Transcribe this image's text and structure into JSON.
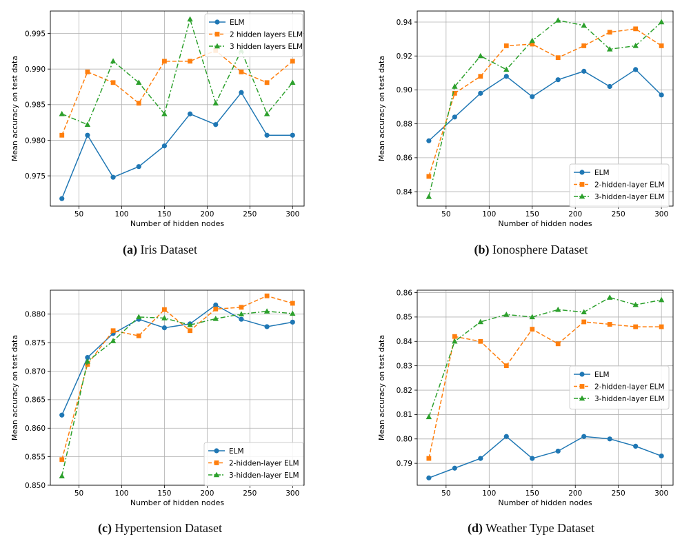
{
  "colors": {
    "elm": "#1f77b4",
    "two": "#ff7f0e",
    "three": "#2ca02c"
  },
  "chart_data": [
    {
      "type": "line",
      "caption_letter": "(a)",
      "caption_text": " Iris Dataset",
      "xlabel": "Number of hidden nodes",
      "ylabel": "Mean accuracy on test data",
      "x": [
        30,
        60,
        90,
        120,
        150,
        180,
        210,
        240,
        270,
        300
      ],
      "xlim": [
        16.5,
        313.5
      ],
      "ylim": [
        0.97075,
        0.99815
      ],
      "xticks": [
        50,
        100,
        150,
        200,
        250,
        300
      ],
      "yticks": [
        0.975,
        0.98,
        0.985,
        0.99,
        0.995
      ],
      "ytick_labels": [
        "0.975",
        "0.980",
        "0.985",
        "0.990",
        "0.995"
      ],
      "xtick_labels": [
        "50",
        "100",
        "150",
        "200",
        "250",
        "300"
      ],
      "legend_position": "upper-right",
      "series": [
        {
          "name": "ELM",
          "style": "solid",
          "marker": "circle",
          "values": [
            0.9718,
            0.9807,
            0.9748,
            0.9763,
            0.9792,
            0.9837,
            0.9822,
            0.9867,
            0.9807,
            0.9807
          ]
        },
        {
          "name": "2 hidden layers ELM",
          "style": "dashed",
          "marker": "square",
          "values": [
            0.9807,
            0.9896,
            0.9881,
            0.9852,
            0.9911,
            0.9911,
            0.9926,
            0.9896,
            0.9881,
            0.9911
          ]
        },
        {
          "name": "3 hidden layers ELM",
          "style": "dashdot",
          "marker": "triangle",
          "values": [
            0.9837,
            0.9822,
            0.9911,
            0.9881,
            0.9837,
            0.997,
            0.9852,
            0.9926,
            0.9837,
            0.9881
          ]
        }
      ]
    },
    {
      "type": "line",
      "caption_letter": "(b)",
      "caption_text": " Ionosphere Dataset",
      "xlabel": "Number of hidden nodes",
      "ylabel": "Mean accuracy on test data",
      "x": [
        30,
        60,
        90,
        120,
        150,
        180,
        210,
        240,
        270,
        300
      ],
      "xlim": [
        16.5,
        313.5
      ],
      "ylim": [
        0.8315,
        0.9465
      ],
      "xticks": [
        50,
        100,
        150,
        200,
        250,
        300
      ],
      "yticks": [
        0.84,
        0.86,
        0.88,
        0.9,
        0.92,
        0.94
      ],
      "ytick_labels": [
        "0.84",
        "0.86",
        "0.88",
        "0.90",
        "0.92",
        "0.94"
      ],
      "xtick_labels": [
        "50",
        "100",
        "150",
        "200",
        "250",
        "300"
      ],
      "legend_position": "lower-right",
      "series": [
        {
          "name": "ELM",
          "style": "solid",
          "marker": "circle",
          "values": [
            0.87,
            0.884,
            0.898,
            0.908,
            0.896,
            0.906,
            0.911,
            0.902,
            0.912,
            0.897
          ]
        },
        {
          "name": "2-hidden-layer ELM",
          "style": "dashed",
          "marker": "square",
          "values": [
            0.849,
            0.898,
            0.908,
            0.926,
            0.927,
            0.919,
            0.926,
            0.934,
            0.936,
            0.926
          ]
        },
        {
          "name": "3-hidden-layer ELM",
          "style": "dashdot",
          "marker": "triangle",
          "values": [
            0.837,
            0.902,
            0.92,
            0.912,
            0.929,
            0.941,
            0.938,
            0.924,
            0.926,
            0.94
          ]
        }
      ]
    },
    {
      "type": "line",
      "caption_letter": "(c)",
      "caption_text": " Hypertension Dataset",
      "xlabel": "Number of hidden nodes",
      "ylabel": "Mean accuracy on test data",
      "x": [
        30,
        60,
        90,
        120,
        150,
        180,
        210,
        240,
        270,
        300
      ],
      "xlim": [
        16.5,
        313.5
      ],
      "ylim": [
        0.85,
        0.8842
      ],
      "xticks": [
        50,
        100,
        150,
        200,
        250,
        300
      ],
      "yticks": [
        0.85,
        0.855,
        0.86,
        0.865,
        0.87,
        0.875,
        0.88
      ],
      "ytick_labels": [
        "0.850",
        "0.855",
        "0.860",
        "0.865",
        "0.870",
        "0.875",
        "0.880"
      ],
      "xtick_labels": [
        "50",
        "100",
        "150",
        "200",
        "250",
        "300"
      ],
      "legend_position": "lower-right",
      "series": [
        {
          "name": "ELM",
          "style": "solid",
          "marker": "circle",
          "values": [
            0.8623,
            0.8724,
            0.8766,
            0.8791,
            0.8776,
            0.8783,
            0.8816,
            0.8791,
            0.8778,
            0.8786
          ]
        },
        {
          "name": "2-hidden-layer ELM",
          "style": "dashed",
          "marker": "square",
          "values": [
            0.8545,
            0.8712,
            0.8771,
            0.8762,
            0.8808,
            0.8771,
            0.8809,
            0.8812,
            0.8832,
            0.8819
          ]
        },
        {
          "name": "3-hidden-layer ELM",
          "style": "dashdot",
          "marker": "triangle",
          "values": [
            0.8516,
            0.8717,
            0.8753,
            0.8795,
            0.8793,
            0.8781,
            0.8792,
            0.88,
            0.8805,
            0.8801
          ]
        }
      ]
    },
    {
      "type": "line",
      "caption_letter": "(d)",
      "caption_text": " Weather Type Dataset",
      "xlabel": "Number of hidden nodes",
      "ylabel": "Mean accuracy on test data",
      "x": [
        30,
        60,
        90,
        120,
        150,
        180,
        210,
        240,
        270,
        300
      ],
      "xlim": [
        16.5,
        313.5
      ],
      "ylim": [
        0.781,
        0.861
      ],
      "xticks": [
        50,
        100,
        150,
        200,
        250,
        300
      ],
      "yticks": [
        0.79,
        0.8,
        0.81,
        0.82,
        0.83,
        0.84,
        0.85,
        0.86
      ],
      "ytick_labels": [
        "0.79",
        "0.80",
        "0.81",
        "0.82",
        "0.83",
        "0.84",
        "0.85",
        "0.86"
      ],
      "xtick_labels": [
        "50",
        "100",
        "150",
        "200",
        "250",
        "300"
      ],
      "legend_position": "center-right",
      "series": [
        {
          "name": "ELM",
          "style": "solid",
          "marker": "circle",
          "values": [
            0.784,
            0.788,
            0.792,
            0.801,
            0.792,
            0.795,
            0.801,
            0.8,
            0.797,
            0.793
          ]
        },
        {
          "name": "2-hidden-layer ELM",
          "style": "dashed",
          "marker": "square",
          "values": [
            0.792,
            0.842,
            0.84,
            0.83,
            0.845,
            0.839,
            0.848,
            0.847,
            0.846,
            0.846
          ]
        },
        {
          "name": "3-hidden-layer ELM",
          "style": "dashdot",
          "marker": "triangle",
          "values": [
            0.809,
            0.84,
            0.848,
            0.851,
            0.85,
            0.853,
            0.852,
            0.858,
            0.855,
            0.857
          ]
        }
      ]
    }
  ]
}
